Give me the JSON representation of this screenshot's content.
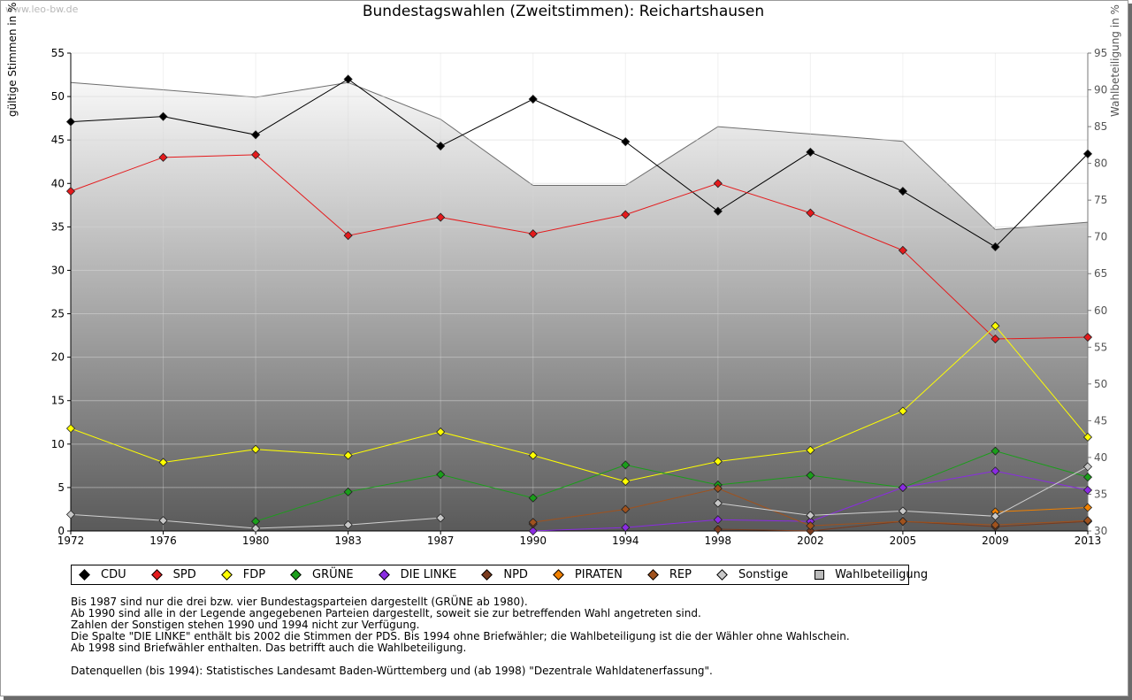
{
  "watermark": "www.leo-bw.de",
  "title": "Bundestagswahlen (Zweitstimmen): Reichartshausen",
  "y_left_label": "gültige Stimmen in %",
  "y_right_label": "Wahlbeteiligung in %",
  "legend": [
    {
      "name": "CDU",
      "color": "#000000"
    },
    {
      "name": "SPD",
      "color": "#e41a1c"
    },
    {
      "name": "FDP",
      "color": "#ffff00"
    },
    {
      "name": "GRÜNE",
      "color": "#1a9e1a"
    },
    {
      "name": "DIE LINKE",
      "color": "#8a2be2"
    },
    {
      "name": "NPD",
      "color": "#7a3b1e"
    },
    {
      "name": "PIRATEN",
      "color": "#f08000"
    },
    {
      "name": "REP",
      "color": "#a0521d"
    },
    {
      "name": "Sonstige",
      "color": "#c8c8c8"
    },
    {
      "name": "Wahlbeteiligung",
      "color": "#bbbbbb",
      "box": true
    }
  ],
  "notes": [
    "Bis 1987 sind nur die drei bzw. vier Bundestagsparteien dargestellt (GRÜNE ab 1980).",
    "Ab 1990 sind alle in der Legende angegebenen Parteien dargestellt, soweit sie zur betreffenden Wahl angetreten sind.",
    "Zahlen der Sonstigen stehen 1990 und 1994 nicht zur Verfügung.",
    "Die Spalte \"DIE LINKE\" enthält bis 2002 die Stimmen der PDS. Bis 1994 ohne Briefwähler; die Wahlbeteiligung ist die der Wähler ohne Wahlschein.",
    "Ab 1998 sind Briefwähler enthalten. Das betrifft auch die Wahlbeteiligung.",
    "",
    "Datenquellen (bis 1994): Statistisches Landesamt Baden-Württemberg und (ab 1998) \"Dezentrale Wahldatenerfassung\"."
  ],
  "chart_data": {
    "type": "line",
    "title": "Bundestagswahlen (Zweitstimmen): Reichartshausen",
    "xlabel": "",
    "ylabel": "gültige Stimmen in %",
    "y2label": "Wahlbeteiligung in %",
    "categories": [
      "1972",
      "1976",
      "1980",
      "1983",
      "1987",
      "1990",
      "1994",
      "1998",
      "2002",
      "2005",
      "2009",
      "2013"
    ],
    "ylim": [
      0,
      55
    ],
    "y_ticks": [
      0,
      5,
      10,
      15,
      20,
      25,
      30,
      35,
      40,
      45,
      50,
      55
    ],
    "y2lim": [
      30,
      95
    ],
    "y2_ticks": [
      30,
      35,
      40,
      45,
      50,
      55,
      60,
      65,
      70,
      75,
      80,
      85,
      90,
      95
    ],
    "grid": true,
    "legend_position": "bottom",
    "turnout": {
      "name": "Wahlbeteiligung",
      "values": [
        91.0,
        90.0,
        89.0,
        91.0,
        86.0,
        77.0,
        77.0,
        85.0,
        84.0,
        83.0,
        71.0,
        72.0
      ]
    },
    "series": [
      {
        "name": "CDU",
        "color": "#000000",
        "values": [
          47.1,
          47.7,
          45.6,
          52.0,
          44.3,
          49.7,
          44.8,
          36.8,
          43.6,
          39.1,
          32.7,
          43.4
        ]
      },
      {
        "name": "SPD",
        "color": "#e41a1c",
        "values": [
          39.1,
          43.0,
          43.3,
          34.0,
          36.1,
          34.2,
          36.4,
          40.0,
          36.6,
          32.3,
          22.1,
          22.3
        ]
      },
      {
        "name": "FDP",
        "color": "#ffff00",
        "values": [
          11.8,
          7.9,
          9.4,
          8.7,
          11.4,
          8.7,
          5.7,
          8.0,
          9.3,
          13.8,
          23.6,
          10.8
        ]
      },
      {
        "name": "GRÜNE",
        "color": "#1a9e1a",
        "values": [
          null,
          null,
          1.1,
          4.5,
          6.5,
          3.8,
          7.6,
          5.3,
          6.4,
          5.0,
          9.2,
          6.2
        ]
      },
      {
        "name": "DIE LINKE",
        "color": "#8a2be2",
        "values": [
          null,
          null,
          null,
          null,
          null,
          0.0,
          0.4,
          1.3,
          1.1,
          5.0,
          6.9,
          4.7
        ]
      },
      {
        "name": "NPD",
        "color": "#7a3b1e",
        "values": [
          null,
          null,
          null,
          null,
          null,
          0.8,
          null,
          0.2,
          0.0,
          1.1,
          0.5,
          1.1
        ]
      },
      {
        "name": "PIRATEN",
        "color": "#f08000",
        "values": [
          null,
          null,
          null,
          null,
          null,
          null,
          null,
          null,
          null,
          null,
          2.2,
          2.7
        ]
      },
      {
        "name": "REP",
        "color": "#a0521d",
        "values": [
          null,
          null,
          null,
          null,
          null,
          1.0,
          2.5,
          4.9,
          0.6,
          1.1,
          0.7,
          1.2
        ]
      },
      {
        "name": "Sonstige",
        "color": "#c8c8c8",
        "values": [
          1.9,
          1.2,
          0.3,
          0.7,
          1.5,
          null,
          null,
          3.2,
          1.8,
          2.3,
          1.7,
          7.4
        ]
      }
    ]
  }
}
